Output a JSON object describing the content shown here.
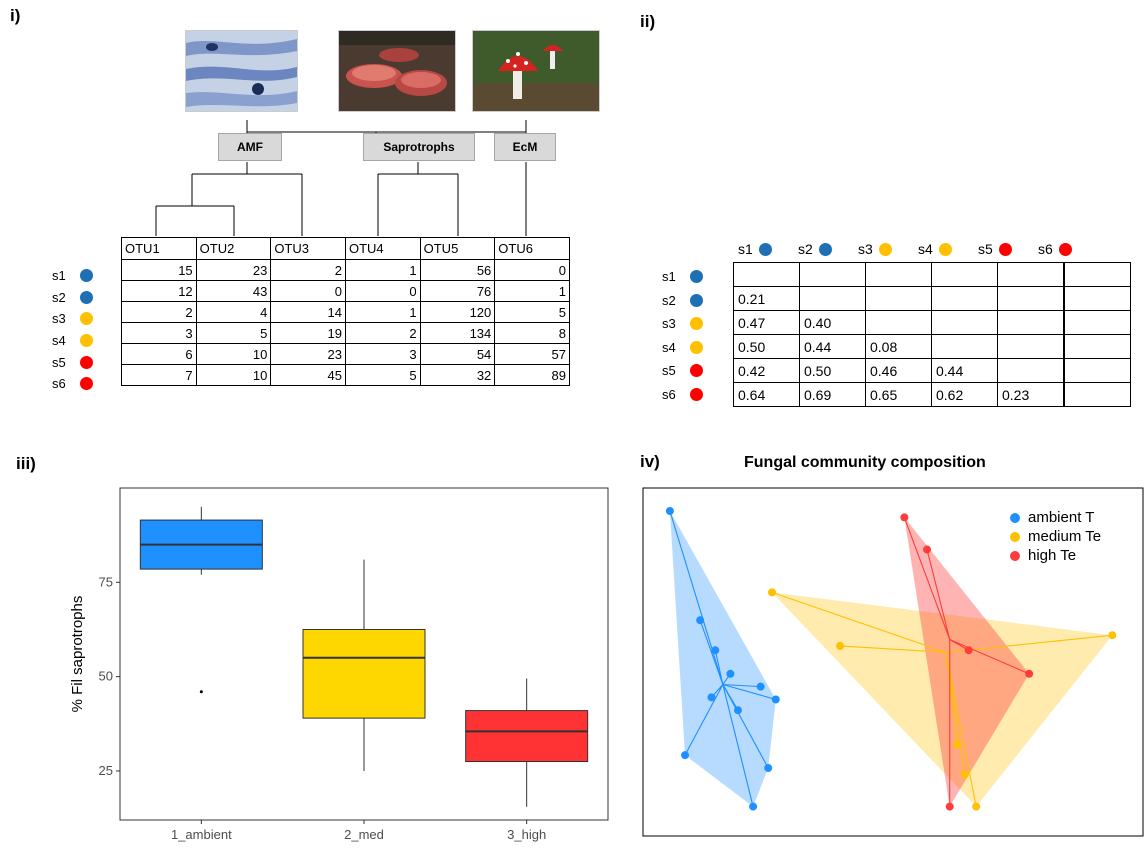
{
  "panels": {
    "i": "i)",
    "ii": "ii)",
    "iii": "iii)",
    "iv": "iv)"
  },
  "groups": [
    "AMF",
    "Saprotrophs",
    "EcM"
  ],
  "otu_table": {
    "columns": [
      "OTU1",
      "OTU2",
      "OTU3",
      "OTU4",
      "OTU5",
      "OTU6"
    ],
    "rows": [
      {
        "sample": "s1",
        "color": "#1f6fb5",
        "values": [
          15,
          23,
          2,
          1,
          56,
          0
        ]
      },
      {
        "sample": "s2",
        "color": "#1f6fb5",
        "values": [
          12,
          43,
          0,
          0,
          76,
          1
        ]
      },
      {
        "sample": "s3",
        "color": "#ffc000",
        "values": [
          2,
          4,
          14,
          1,
          120,
          5
        ]
      },
      {
        "sample": "s4",
        "color": "#ffc000",
        "values": [
          3,
          5,
          19,
          2,
          134,
          8
        ]
      },
      {
        "sample": "s5",
        "color": "#ff0000",
        "values": [
          6,
          10,
          23,
          3,
          54,
          57
        ]
      },
      {
        "sample": "s6",
        "color": "#ff0000",
        "values": [
          7,
          10,
          45,
          5,
          32,
          89
        ]
      }
    ]
  },
  "distance_matrix": {
    "samples": [
      {
        "name": "s1",
        "color": "#1f6fb5"
      },
      {
        "name": "s2",
        "color": "#1f6fb5"
      },
      {
        "name": "s3",
        "color": "#ffc000"
      },
      {
        "name": "s4",
        "color": "#ffc000"
      },
      {
        "name": "s5",
        "color": "#ff0000"
      },
      {
        "name": "s6",
        "color": "#ff0000"
      }
    ],
    "values": [
      [],
      [
        "0.21"
      ],
      [
        "0.47",
        "0.40"
      ],
      [
        "0.50",
        "0.44",
        "0.08"
      ],
      [
        "0.42",
        "0.50",
        "0.46",
        "0.44"
      ],
      [
        "0.64",
        "0.69",
        "0.65",
        "0.62",
        "0.23"
      ]
    ]
  },
  "chart_data": [
    {
      "type": "box",
      "categories": [
        "1_ambient",
        "2_med",
        "3_high"
      ],
      "ylabel": "% Fil saprotrophs",
      "xlabel": "",
      "yticks": [
        25,
        50,
        75
      ],
      "ylim": [
        12,
        100
      ],
      "colors": [
        "#1e90ff",
        "#ffd700",
        "#ff3333"
      ],
      "boxes": [
        {
          "whisker_low": 77,
          "q1": 78.5,
          "median": 85,
          "q3": 91.5,
          "whisker_high": 95,
          "outliers": [
            46
          ]
        },
        {
          "whisker_low": 25,
          "q1": 39,
          "median": 55,
          "q3": 62.5,
          "whisker_high": 81,
          "outliers": []
        },
        {
          "whisker_low": 15.5,
          "q1": 27.5,
          "median": 35.5,
          "q3": 41,
          "whisker_high": 49.5,
          "outliers": []
        }
      ]
    },
    {
      "type": "scatter",
      "title": "Fungal community composition",
      "series": [
        {
          "name": "ambient T",
          "color": "#1e90ff",
          "centroid": [
            0.09,
            -0.03
          ],
          "points": [
            [
              -0.05,
              0.78
            ],
            [
              0.03,
              0.27
            ],
            [
              0.07,
              0.13
            ],
            [
              0.11,
              0.02
            ],
            [
              0.06,
              -0.09
            ],
            [
              0.19,
              -0.04
            ],
            [
              0.13,
              -0.15
            ],
            [
              0.23,
              -0.1
            ],
            [
              0.21,
              -0.42
            ],
            [
              0.17,
              -0.6
            ],
            [
              -0.01,
              -0.36
            ]
          ]
        },
        {
          "name": "medium Te",
          "color": "#ffc000",
          "centroid": [
            0.68,
            0.12
          ],
          "points": [
            [
              0.22,
              0.4
            ],
            [
              0.4,
              0.15
            ],
            [
              1.12,
              0.2
            ],
            [
              0.71,
              -0.31
            ],
            [
              0.76,
              -0.6
            ],
            [
              0.73,
              -0.45
            ]
          ]
        },
        {
          "name": "high Te",
          "color": "#ff3b3b",
          "centroid": [
            0.69,
            0.18
          ],
          "points": [
            [
              0.57,
              0.75
            ],
            [
              0.63,
              0.6
            ],
            [
              0.74,
              0.13
            ],
            [
              0.9,
              0.02
            ],
            [
              0.69,
              -0.6
            ]
          ]
        }
      ]
    }
  ]
}
